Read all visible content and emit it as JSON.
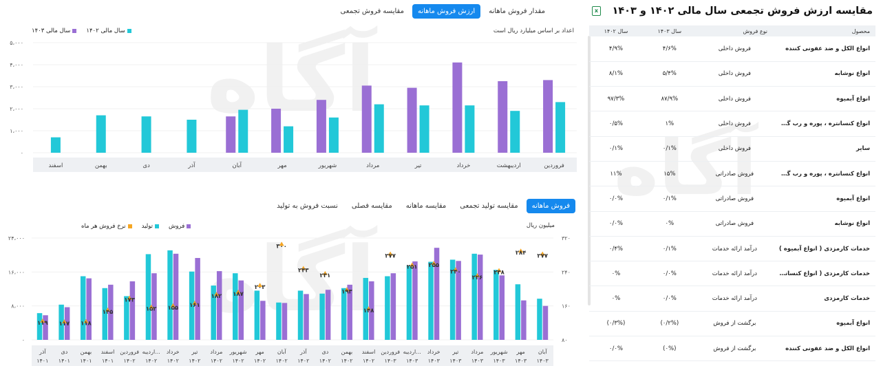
{
  "colors": {
    "cyan": "#22c8d8",
    "purple": "#9a6fd4",
    "orange": "#f5a623",
    "accent": "#1589ee"
  },
  "top_tabs": [
    {
      "label": "مقدار فروش ماهانه",
      "active": false
    },
    {
      "label": "ارزش فروش ماهانه",
      "active": true
    },
    {
      "label": "مقایسه فروش تجمعی",
      "active": false
    }
  ],
  "chart1": {
    "legend": [
      "سال مالی ۱۴۰۲",
      "سال مالی ۱۴۰۳"
    ],
    "note": "اعداد بر اساس میلیارد ریال است"
  },
  "bottom_tabs": [
    {
      "label": "فروش ماهانه",
      "active": true
    },
    {
      "label": "مقایسه تولید تجمعی",
      "active": false
    },
    {
      "label": "مقایسه ماهانه",
      "active": false
    },
    {
      "label": "مقایسه فصلی",
      "active": false
    },
    {
      "label": "نسبت فروش به تولید",
      "active": false
    }
  ],
  "chart2": {
    "legend": [
      "فروش",
      "تولید",
      "نرخ فروش هر ماه"
    ],
    "unit": "میلیون ریال"
  },
  "chart_data": [
    {
      "type": "bar",
      "categories": [
        "فروردین",
        "اردیبهشت",
        "خرداد",
        "تیر",
        "مرداد",
        "شهریور",
        "مهر",
        "آبان",
        "آذر",
        "دی",
        "بهمن",
        "اسفند"
      ],
      "series": [
        {
          "name": "سال مالی ۱۴۰۲",
          "values": [
            2300,
            1900,
            2150,
            2150,
            2200,
            1600,
            1200,
            1950,
            1500,
            1650,
            1700,
            700
          ]
        },
        {
          "name": "سال مالی ۱۴۰۳",
          "values": [
            3300,
            3250,
            4100,
            2950,
            3050,
            2400,
            2000,
            1650,
            null,
            null,
            null,
            null
          ]
        }
      ],
      "yticks": [
        "۵،۰۰۰",
        "۴،۰۰۰",
        "۳،۰۰۰",
        "۲،۰۰۰",
        "۱،۰۰۰",
        "۰"
      ],
      "ylim": [
        0,
        5000
      ]
    },
    {
      "type": "bar",
      "categories": [
        "آذر ۱۴۰۱",
        "دی ۱۴۰۱",
        "بهمن ۱۴۰۱",
        "اسفند ۱۴۰۱",
        "فروردین ۱۴۰۲",
        "اردیبه... ۱۴۰۲",
        "خرداد ۱۴۰۲",
        "تیر ۱۴۰۲",
        "مرداد ۱۴۰۲",
        "شهریور ۱۴۰۲",
        "مهر ۱۴۰۲",
        "آبان ۱۴۰۲",
        "آذر ۱۴۰۲",
        "دی ۱۴۰۲",
        "بهمن ۱۴۰۲",
        "اسفند ۱۴۰۲",
        "فروردین ۱۴۰۳",
        "اردیبه... ۱۴۰۳",
        "خرداد ۱۴۰۳",
        "تیر ۱۴۰۳",
        "مرداد ۱۴۰۳",
        "شهریور ۱۴۰۳",
        "مهر ۱۴۰۳",
        "آبان ۱۴۰۳"
      ],
      "series": [
        {
          "name": "فروش",
          "values": [
            5800,
            7700,
            14500,
            13000,
            13800,
            15700,
            20300,
            19300,
            16200,
            14000,
            9200,
            8700,
            10800,
            11800,
            13000,
            13800,
            15700,
            18500,
            21700,
            18600,
            20100,
            15200,
            9300,
            8000
          ]
        },
        {
          "name": "تولید",
          "values": [
            6300,
            8300,
            15000,
            12200,
            10300,
            20200,
            21100,
            16100,
            12800,
            15700,
            11600,
            8800,
            11600,
            10900,
            12200,
            14600,
            15000,
            17500,
            18400,
            18900,
            20300,
            16500,
            13100,
            9700
          ]
        },
        {
          "name": "نرخ فروش هر ماه",
          "values": [
            119,
            117,
            118,
            145,
            173,
            152,
            155,
            161,
            182,
            187,
            203,
            300,
            243,
            231,
            193,
            148,
            277,
            251,
            255,
            240,
            226,
            238,
            284,
            277
          ]
        }
      ],
      "point_labels": [
        "۱۱۹",
        "۱۱۷",
        "۱۱۸",
        "۱۴۵",
        "۱۷۳",
        "۱۵۲",
        "۱۵۵",
        "۱۶۱",
        "۱۸۲",
        "۱۸۷",
        "۲۰۳",
        "۳۰۰",
        "۲۴۳",
        "۲۳۱",
        "۱۹۳",
        "۱۴۸",
        "۲۷۷",
        "۲۵۱",
        "۲۵۵",
        "۲۴۰",
        "۲۲۶",
        "۲۳۸",
        "۲۸۴",
        "۲۷۷"
      ],
      "yticks_left": [
        "۲۴،۰۰۰",
        "۱۶،۰۰۰",
        "۸،۰۰۰",
        "۰"
      ],
      "yticks_right": [
        "۳۲۰",
        "۲۴۰",
        "۱۶۰",
        "۸۰"
      ],
      "ylim_left": [
        0,
        24000
      ],
      "ylim_right": [
        80,
        320
      ]
    }
  ],
  "table": {
    "title": "مقایسه ارزش فروش تجمعی سال مالی ۱۴۰۲ و ۱۴۰۳",
    "headers": [
      "محصول",
      "نوع فروش",
      "سال ۱۴۰۳",
      "سال ۱۴۰۲"
    ],
    "rows": [
      [
        "انواع الکل و ضد عفونی کننده",
        "فروش داخلی",
        "۴/۶%",
        "۴/۹%"
      ],
      [
        "انواع نوشابه",
        "فروش داخلی",
        "۵/۴%",
        "۸/۱%"
      ],
      [
        "انواع آبمیوه",
        "فروش داخلی",
        "۸۷/۹%",
        "۹۷/۳%"
      ],
      [
        "انواع کنسانتره ، پوره و رب گوجه فرنگی",
        "فروش داخلی",
        "۱%",
        "۰/۵%"
      ],
      [
        "سایر",
        "فروش داخلی",
        "۰/۱%",
        "۰/۱%"
      ],
      [
        "انواع کنسانتره ، پوره و رب گوجه فرنگی",
        "فروش صادراتی",
        "۱۵%",
        "۱۱%"
      ],
      [
        "انواع آبمیوه",
        "فروش صادراتی",
        "۰/۱%",
        "۰/۰%"
      ],
      [
        "انواع نوشابه",
        "فروش صادراتی",
        "۰%",
        "۰/۰%"
      ],
      [
        "خدمات کارمزدی ( انواع آبمیوه )",
        "درآمد ارائه خدمات",
        "۰/۱%",
        "۰/۴%"
      ],
      [
        "خدمات کارمزدی ( انواع کنسانتره ، پوره و رب )",
        "درآمد ارائه خدمات",
        "۰/۰%",
        "۰%"
      ],
      [
        "خدمات کارمزدی",
        "درآمد ارائه خدمات",
        "۰/۰%",
        "۰%"
      ],
      [
        "انواع آبمیوه",
        "برگشت از فروش",
        "(۰/۲%)",
        "(۰/۳%)"
      ],
      [
        "انواع الکل و ضد عفونی کننده",
        "برگشت از فروش",
        "(۰%)",
        "۰/۰%"
      ]
    ]
  }
}
